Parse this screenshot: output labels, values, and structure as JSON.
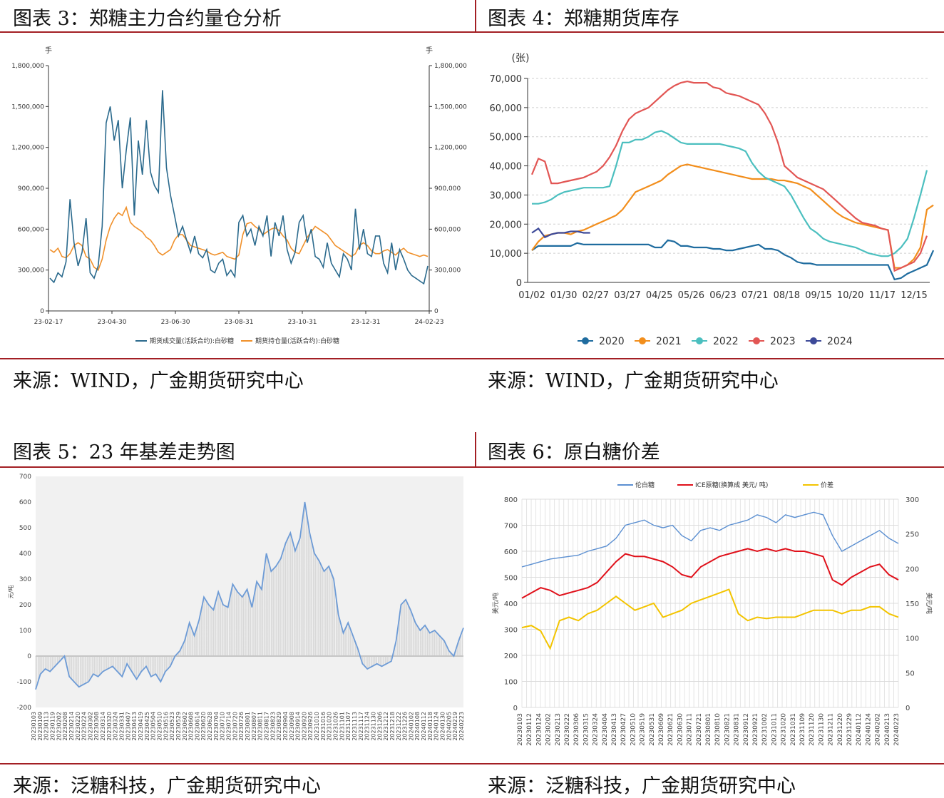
{
  "panels": {
    "p3": {
      "title": "图表 3：郑糖主力合约量仓分析",
      "source": "来源：WIND，广金期货研究中心"
    },
    "p4": {
      "title": "图表 4：郑糖期货库存",
      "source": "来源：WIND，广金期货研究中心"
    },
    "p5": {
      "title": "图表 5：23 年基差走势图",
      "source": "来源：泛糖科技，广金期货研究中心"
    },
    "p6": {
      "title": "图表 6：原白糖价差",
      "source": "来源：泛糖科技，广金期货研究中心"
    }
  },
  "chart_data": [
    {
      "id": "c3",
      "type": "line",
      "unit_left": "手",
      "unit_right": "手",
      "ylim": [
        0,
        1800000
      ],
      "yticks": [
        "0",
        "300,000",
        "600,000",
        "900,000",
        "1,200,000",
        "1,500,000",
        "1,800,000"
      ],
      "xticks": [
        "23-02-17",
        "23-04-30",
        "23-06-30",
        "23-08-31",
        "23-10-31",
        "23-12-31",
        "24-02-23"
      ],
      "colors": [
        "#2b6a8d",
        "#f0902a"
      ],
      "series": [
        {
          "name": "期货成交量(活跃合约):白砂糖",
          "values": [
            240000,
            210000,
            280000,
            250000,
            360000,
            820000,
            500000,
            330000,
            430000,
            680000,
            280000,
            240000,
            330000,
            620000,
            1380000,
            1500000,
            1250000,
            1400000,
            900000,
            1180000,
            1420000,
            700000,
            1250000,
            1000000,
            1400000,
            1020000,
            920000,
            870000,
            1620000,
            1050000,
            850000,
            700000,
            550000,
            620000,
            520000,
            430000,
            550000,
            420000,
            390000,
            450000,
            300000,
            280000,
            350000,
            380000,
            260000,
            300000,
            250000,
            650000,
            700000,
            550000,
            600000,
            480000,
            620000,
            550000,
            700000,
            400000,
            650000,
            550000,
            700000,
            450000,
            350000,
            430000,
            650000,
            700000,
            500000,
            600000,
            400000,
            380000,
            320000,
            500000,
            350000,
            300000,
            250000,
            420000,
            380000,
            300000,
            750000,
            450000,
            600000,
            420000,
            400000,
            550000,
            550000,
            350000,
            280000,
            500000,
            300000,
            450000,
            380000,
            300000,
            260000,
            240000,
            220000,
            200000,
            330000
          ]
        },
        {
          "name": "期货持仓量(活跃合约):白砂糖",
          "values": [
            450000,
            430000,
            460000,
            400000,
            390000,
            420000,
            480000,
            500000,
            480000,
            400000,
            380000,
            320000,
            300000,
            380000,
            520000,
            620000,
            680000,
            720000,
            700000,
            760000,
            650000,
            620000,
            600000,
            580000,
            540000,
            520000,
            480000,
            430000,
            410000,
            430000,
            450000,
            520000,
            560000,
            560000,
            520000,
            480000,
            470000,
            460000,
            450000,
            440000,
            420000,
            410000,
            420000,
            430000,
            400000,
            390000,
            380000,
            410000,
            560000,
            640000,
            650000,
            620000,
            600000,
            560000,
            580000,
            600000,
            610000,
            590000,
            550000,
            520000,
            460000,
            430000,
            420000,
            480000,
            540000,
            580000,
            620000,
            600000,
            580000,
            560000,
            520000,
            480000,
            460000,
            440000,
            420000,
            400000,
            420000,
            480000,
            500000,
            480000,
            440000,
            420000,
            420000,
            440000,
            450000,
            430000,
            410000,
            440000,
            460000,
            430000,
            420000,
            410000,
            400000,
            410000,
            400000
          ]
        }
      ]
    },
    {
      "id": "c4",
      "type": "line",
      "unit": "(张)",
      "ylim": [
        0,
        70000
      ],
      "yticks": [
        "0",
        "10,000",
        "20,000",
        "30,000",
        "40,000",
        "50,000",
        "60,000",
        "70,000"
      ],
      "xticks": [
        "01/02",
        "01/30",
        "02/27",
        "03/27",
        "04/25",
        "05/26",
        "06/23",
        "07/21",
        "08/18",
        "09/15",
        "10/20",
        "11/17",
        "12/15"
      ],
      "series": [
        {
          "name": "2020",
          "color": "#1f6c9f",
          "values": [
            11000,
            12500,
            12500,
            12500,
            12500,
            12500,
            12500,
            13500,
            13000,
            13000,
            13000,
            13000,
            13000,
            13000,
            13000,
            13000,
            13000,
            13000,
            13000,
            12000,
            12000,
            14500,
            14000,
            12500,
            12500,
            12000,
            12000,
            12000,
            11500,
            11500,
            11000,
            11000,
            11500,
            12000,
            12500,
            13000,
            11500,
            11500,
            11000,
            9500,
            8500,
            7000,
            6500,
            6500,
            6000,
            6000,
            6000,
            6000,
            6000,
            6000,
            6000,
            6000,
            6000,
            6000,
            6000,
            6000,
            1000,
            1500,
            3000,
            4000,
            5000,
            6000,
            11000
          ]
        },
        {
          "name": "2021",
          "color": "#f28e1c",
          "values": [
            11000,
            14000,
            16000,
            16500,
            17000,
            17000,
            16500,
            17500,
            18000,
            19000,
            20000,
            21000,
            22000,
            23000,
            25000,
            28000,
            31000,
            32000,
            33000,
            34000,
            35000,
            37000,
            38500,
            40000,
            40500,
            40000,
            39500,
            39000,
            38500,
            38000,
            37500,
            37000,
            36500,
            36000,
            35500,
            35500,
            35500,
            35500,
            35000,
            35000,
            34500,
            34000,
            33000,
            32000,
            30000,
            28000,
            26000,
            24000,
            22500,
            21500,
            20500,
            20000,
            19500,
            19000,
            18500,
            18000,
            5000,
            5000,
            6000,
            8000,
            12000,
            25000,
            26500
          ]
        },
        {
          "name": "2022",
          "color": "#4bbfbf",
          "values": [
            27000,
            27000,
            27500,
            28500,
            30000,
            31000,
            31500,
            32000,
            32500,
            32500,
            32500,
            32500,
            33000,
            40000,
            48000,
            48000,
            49000,
            49000,
            50000,
            51500,
            52000,
            51000,
            49500,
            48000,
            47500,
            47500,
            47500,
            47500,
            47500,
            47500,
            47000,
            46500,
            46000,
            45000,
            41000,
            38000,
            36000,
            35000,
            34000,
            33000,
            30000,
            26000,
            22000,
            18500,
            17000,
            15000,
            14000,
            13500,
            13000,
            12500,
            12000,
            11000,
            10000,
            9500,
            9000,
            9000,
            10000,
            12000,
            15000,
            22000,
            30000,
            38500
          ]
        },
        {
          "name": "2023",
          "color": "#e25654",
          "values": [
            37000,
            42500,
            41500,
            34000,
            34000,
            34500,
            35000,
            35500,
            36000,
            37000,
            38000,
            40000,
            43000,
            47000,
            52000,
            56000,
            58000,
            59000,
            60000,
            62000,
            64000,
            66000,
            67500,
            68500,
            69000,
            68500,
            68500,
            68500,
            67000,
            66500,
            65000,
            64500,
            64000,
            63000,
            62000,
            61000,
            58000,
            54000,
            48000,
            40000,
            38000,
            36000,
            35000,
            34000,
            33000,
            32000,
            30000,
            28000,
            26000,
            24000,
            22000,
            20500,
            20000,
            19500,
            18500,
            18000,
            4000,
            5000,
            6000,
            7000,
            10000,
            16000
          ]
        },
        {
          "name": "2024",
          "color": "#3d4a99",
          "values": [
            17000,
            18500,
            15500,
            16500,
            17000,
            17000,
            17500,
            17500,
            17000,
            17000
          ]
        }
      ]
    },
    {
      "id": "c5",
      "type": "area",
      "unit": "元/吨",
      "ylim": [
        -200,
        700
      ],
      "yticks": [
        "-200",
        "-100",
        "0",
        "100",
        "200",
        "300",
        "400",
        "500",
        "600",
        "700"
      ],
      "xticks": [
        "20230103",
        "20230109",
        "20230113",
        "20230119",
        "20230202",
        "20230208",
        "20230214",
        "20230220",
        "20230224",
        "20230302",
        "20230308",
        "20230314",
        "20230320",
        "20230324",
        "20230331",
        "20230407",
        "20230413",
        "20230419",
        "20230425",
        "20230504",
        "20230510",
        "20230516",
        "20230523",
        "20230529",
        "20230602",
        "20230608",
        "20230614",
        "20230620",
        "20230628",
        "20230704",
        "20230710",
        "20230714",
        "20230720",
        "20230726",
        "20230801",
        "20230807",
        "20230811",
        "20230817",
        "20230823",
        "20230829",
        "20230904",
        "20230908",
        "20230914",
        "20230920",
        "20230926",
        "20231010",
        "20231016",
        "20231020",
        "20231026",
        "20231101",
        "20231107",
        "20231113",
        "20231117",
        "20231124",
        "20231130",
        "20231206",
        "20231212",
        "20231218",
        "20231222",
        "20231226",
        "20240102",
        "20240108",
        "20240112",
        "20240118",
        "20240124",
        "20240130",
        "20240205",
        "20240219",
        "20240223"
      ],
      "color": "#6d9bd6",
      "values": [
        -130,
        -70,
        -50,
        -60,
        -40,
        -20,
        0,
        -80,
        -100,
        -120,
        -110,
        -100,
        -70,
        -80,
        -60,
        -50,
        -40,
        -60,
        -80,
        -30,
        -60,
        -90,
        -60,
        -40,
        -80,
        -70,
        -100,
        -60,
        -40,
        0,
        20,
        60,
        130,
        80,
        140,
        230,
        200,
        180,
        250,
        200,
        190,
        280,
        250,
        230,
        260,
        190,
        290,
        260,
        400,
        330,
        350,
        380,
        440,
        480,
        410,
        460,
        600,
        480,
        400,
        370,
        330,
        350,
        300,
        160,
        90,
        130,
        80,
        30,
        -30,
        -50,
        -40,
        -30,
        -40,
        -30,
        -20,
        60,
        200,
        220,
        180,
        130,
        100,
        120,
        90,
        100,
        80,
        60,
        20,
        0,
        60,
        110
      ]
    },
    {
      "id": "c6",
      "type": "line",
      "unit_left": "美元/吨",
      "unit_right": "美元/吨",
      "ylim_left": [
        0,
        800
      ],
      "ylim_right": [
        0,
        300
      ],
      "yticks_left": [
        "0",
        "100",
        "200",
        "300",
        "400",
        "500",
        "600",
        "700",
        "800"
      ],
      "yticks_right": [
        "0",
        "50",
        "100",
        "150",
        "200",
        "250",
        "300"
      ],
      "xticks": [
        "20230103",
        "20230112",
        "20230124",
        "20230202",
        "20230213",
        "20230222",
        "20230306",
        "20230315",
        "20230324",
        "20230404",
        "20230413",
        "20230427",
        "20230510",
        "20230519",
        "20230531",
        "20230609",
        "20230621",
        "20230630",
        "20230711",
        "20230721",
        "20230801",
        "20230810",
        "20230821",
        "20230831",
        "20230912",
        "20230921",
        "20231002",
        "20231011",
        "20231020",
        "20231031",
        "20231109",
        "20231120",
        "20231130",
        "20231211",
        "20231220",
        "20231229",
        "20240112",
        "20240124",
        "20240202",
        "20240213",
        "20240223"
      ],
      "series": [
        {
          "name": "伦白糖",
          "color": "#5b8fd1",
          "axis": "left",
          "values": [
            540,
            550,
            560,
            570,
            575,
            580,
            585,
            600,
            610,
            620,
            650,
            700,
            710,
            720,
            700,
            690,
            700,
            660,
            640,
            680,
            690,
            680,
            700,
            710,
            720,
            740,
            730,
            710,
            740,
            730,
            740,
            750,
            740,
            660,
            600,
            620,
            640,
            660,
            680,
            650,
            630
          ]
        },
        {
          "name": "ICE原糖(换算成 美元/ 吨)",
          "color": "#e0101a",
          "axis": "left",
          "values": [
            420,
            440,
            460,
            450,
            430,
            440,
            450,
            460,
            480,
            520,
            560,
            590,
            580,
            580,
            570,
            560,
            540,
            510,
            500,
            540,
            560,
            580,
            590,
            600,
            610,
            600,
            610,
            600,
            610,
            600,
            600,
            590,
            580,
            490,
            470,
            500,
            520,
            540,
            550,
            510,
            490
          ]
        },
        {
          "name": "价差",
          "color": "#f3c400",
          "axis": "right",
          "values": [
            115,
            118,
            110,
            85,
            125,
            130,
            125,
            135,
            140,
            150,
            160,
            150,
            140,
            145,
            150,
            130,
            135,
            140,
            150,
            155,
            160,
            165,
            170,
            135,
            125,
            130,
            128,
            130,
            130,
            130,
            135,
            140,
            140,
            140,
            135,
            140,
            140,
            145,
            145,
            135,
            130
          ]
        }
      ]
    }
  ]
}
